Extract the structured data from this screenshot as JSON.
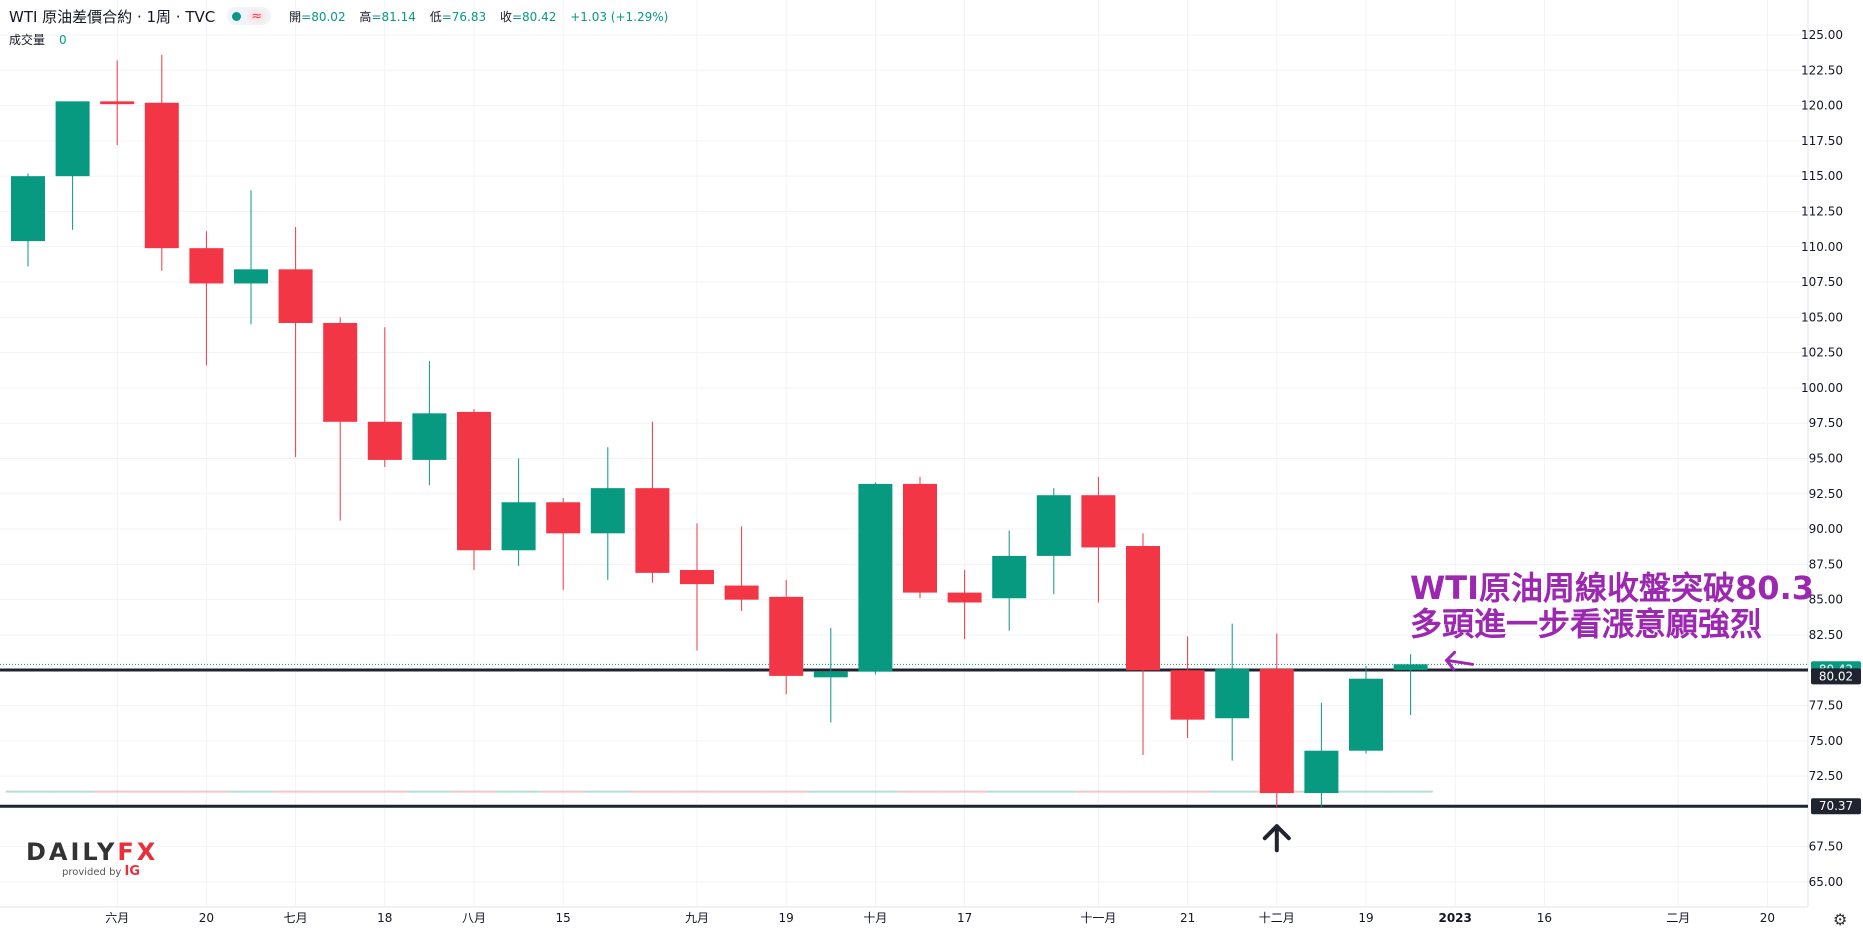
{
  "header": {
    "symbol": "WTI 原油差價合約 · 1周 · TVC",
    "wave_glyph": "≈",
    "ohlc": [
      {
        "label": "開",
        "value": "=80.02"
      },
      {
        "label": "高",
        "value": "=81.14"
      },
      {
        "label": "低",
        "value": "=76.83"
      },
      {
        "label": "收",
        "value": "=80.42"
      },
      {
        "label": "",
        "value": "+1.03 (+1.29%)"
      }
    ],
    "volume_label": "成交量",
    "volume_value": "0"
  },
  "annotation": {
    "line1": "WTI原油周線收盤突破80.3",
    "line2": "多頭進一步看漲意願強烈"
  },
  "logo": {
    "brand_main": "DAILY",
    "brand_fx": "FX",
    "provided_by": "provided by",
    "ig": "IG"
  },
  "colors": {
    "up": "#089981",
    "down": "#f23645",
    "annotation": "#9c27b0",
    "grid": "#f0f3fa",
    "hline": "#1f2430"
  },
  "chart_data": {
    "type": "candlestick",
    "title": "WTI 原油差價合約 · 1周 · TVC",
    "ylim": [
      63.6,
      126.5
    ],
    "y_ticks": [
      "125.00",
      "122.50",
      "120.00",
      "117.50",
      "115.00",
      "112.50",
      "110.00",
      "107.50",
      "105.00",
      "102.50",
      "100.00",
      "97.50",
      "95.00",
      "92.50",
      "90.00",
      "87.50",
      "85.00",
      "82.50",
      "77.50",
      "75.00",
      "72.50",
      "67.50",
      "65.00"
    ],
    "x_ticks": [
      {
        "label": "六月",
        "bar": 2
      },
      {
        "label": "20",
        "bar": 4
      },
      {
        "label": "七月",
        "bar": 6
      },
      {
        "label": "18",
        "bar": 8
      },
      {
        "label": "八月",
        "bar": 10
      },
      {
        "label": "15",
        "bar": 12
      },
      {
        "label": "九月",
        "bar": 15
      },
      {
        "label": "19",
        "bar": 17
      },
      {
        "label": "十月",
        "bar": 19
      },
      {
        "label": "17",
        "bar": 21
      },
      {
        "label": "十一月",
        "bar": 24
      },
      {
        "label": "21",
        "bar": 26
      },
      {
        "label": "十二月",
        "bar": 28
      },
      {
        "label": "19",
        "bar": 30
      },
      {
        "label": "2023",
        "bar": 32
      },
      {
        "label": "16",
        "bar": 34
      },
      {
        "label": "二月",
        "bar": 37
      },
      {
        "label": "20",
        "bar": 39
      }
    ],
    "candles": [
      {
        "o": 110.4,
        "h": 115.2,
        "l": 108.6,
        "c": 115.0
      },
      {
        "o": 115.0,
        "h": 120.2,
        "l": 111.2,
        "c": 120.3
      },
      {
        "o": 120.3,
        "h": 123.2,
        "l": 117.2,
        "c": 120.1
      },
      {
        "o": 120.2,
        "h": 123.6,
        "l": 108.3,
        "c": 109.9
      },
      {
        "o": 109.9,
        "h": 111.1,
        "l": 101.6,
        "c": 107.4
      },
      {
        "o": 107.4,
        "h": 114.0,
        "l": 104.5,
        "c": 108.4
      },
      {
        "o": 108.4,
        "h": 111.4,
        "l": 95.1,
        "c": 104.6
      },
      {
        "o": 104.6,
        "h": 105.0,
        "l": 90.6,
        "c": 97.6
      },
      {
        "o": 97.6,
        "h": 104.3,
        "l": 94.4,
        "c": 94.9
      },
      {
        "o": 94.9,
        "h": 101.9,
        "l": 93.1,
        "c": 98.2
      },
      {
        "o": 98.3,
        "h": 98.5,
        "l": 87.1,
        "c": 88.5
      },
      {
        "o": 88.5,
        "h": 95.0,
        "l": 87.4,
        "c": 91.9
      },
      {
        "o": 91.9,
        "h": 92.2,
        "l": 85.7,
        "c": 89.7
      },
      {
        "o": 89.7,
        "h": 95.8,
        "l": 86.4,
        "c": 92.9
      },
      {
        "o": 92.9,
        "h": 97.6,
        "l": 86.2,
        "c": 86.9
      },
      {
        "o": 87.1,
        "h": 90.4,
        "l": 81.4,
        "c": 86.1
      },
      {
        "o": 86.0,
        "h": 90.2,
        "l": 84.2,
        "c": 85.0
      },
      {
        "o": 85.2,
        "h": 86.4,
        "l": 78.3,
        "c": 79.6
      },
      {
        "o": 79.5,
        "h": 83.0,
        "l": 76.3,
        "c": 79.9
      },
      {
        "o": 79.9,
        "h": 93.3,
        "l": 79.7,
        "c": 93.2
      },
      {
        "o": 93.2,
        "h": 93.7,
        "l": 85.1,
        "c": 85.5
      },
      {
        "o": 85.5,
        "h": 87.1,
        "l": 82.2,
        "c": 84.8
      },
      {
        "o": 85.1,
        "h": 89.9,
        "l": 82.8,
        "c": 88.1
      },
      {
        "o": 88.1,
        "h": 92.9,
        "l": 85.4,
        "c": 92.4
      },
      {
        "o": 92.4,
        "h": 93.7,
        "l": 84.8,
        "c": 88.7
      },
      {
        "o": 88.8,
        "h": 89.7,
        "l": 74.0,
        "c": 80.0
      },
      {
        "o": 80.0,
        "h": 82.4,
        "l": 75.2,
        "c": 76.5
      },
      {
        "o": 76.6,
        "h": 83.3,
        "l": 73.6,
        "c": 80.1
      },
      {
        "o": 80.1,
        "h": 82.6,
        "l": 70.3,
        "c": 71.3
      },
      {
        "o": 71.3,
        "h": 77.7,
        "l": 70.3,
        "c": 74.3
      },
      {
        "o": 74.3,
        "h": 80.3,
        "l": 74.1,
        "c": 79.4
      },
      {
        "o": 80.02,
        "h": 81.14,
        "l": 76.83,
        "c": 80.42
      }
    ],
    "horizontal_lines": [
      {
        "price": 80.02,
        "label": "80.02"
      },
      {
        "price": 70.37,
        "label": "70.37"
      }
    ],
    "last_price": {
      "price": 80.42,
      "label": "80.42"
    },
    "volume_line_price": 71.4
  }
}
